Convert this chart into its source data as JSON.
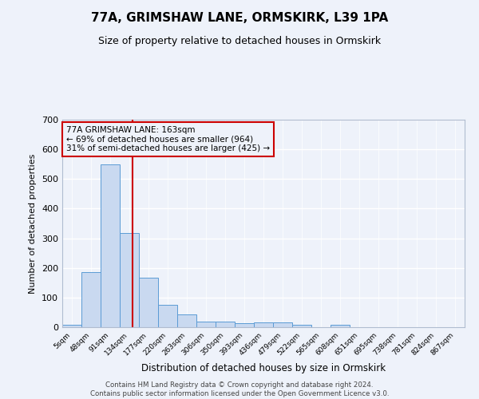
{
  "title1": "77A, GRIMSHAW LANE, ORMSKIRK, L39 1PA",
  "title2": "Size of property relative to detached houses in Ormskirk",
  "xlabel": "Distribution of detached houses by size in Ormskirk",
  "ylabel": "Number of detached properties",
  "bin_labels": [
    "5sqm",
    "48sqm",
    "91sqm",
    "134sqm",
    "177sqm",
    "220sqm",
    "263sqm",
    "306sqm",
    "350sqm",
    "393sqm",
    "436sqm",
    "479sqm",
    "522sqm",
    "565sqm",
    "608sqm",
    "651sqm",
    "695sqm",
    "738sqm",
    "781sqm",
    "824sqm",
    "867sqm"
  ],
  "bar_heights": [
    8,
    187,
    549,
    317,
    167,
    76,
    42,
    20,
    20,
    13,
    15,
    15,
    8,
    0,
    8,
    0,
    0,
    0,
    0,
    0,
    0
  ],
  "bar_color": "#c9d9f0",
  "bar_edge_color": "#5b9bd5",
  "vline_color": "#cc0000",
  "ylim": [
    0,
    700
  ],
  "yticks": [
    0,
    100,
    200,
    300,
    400,
    500,
    600,
    700
  ],
  "annotation_line1": "77A GRIMSHAW LANE: 163sqm",
  "annotation_line2": "← 69% of detached houses are smaller (964)",
  "annotation_line3": "31% of semi-detached houses are larger (425) →",
  "footer": "Contains HM Land Registry data © Crown copyright and database right 2024.\nContains public sector information licensed under the Open Government Licence v3.0.",
  "bg_color": "#eef2fa",
  "grid_color": "#ffffff",
  "title1_fontsize": 11,
  "title2_fontsize": 9
}
